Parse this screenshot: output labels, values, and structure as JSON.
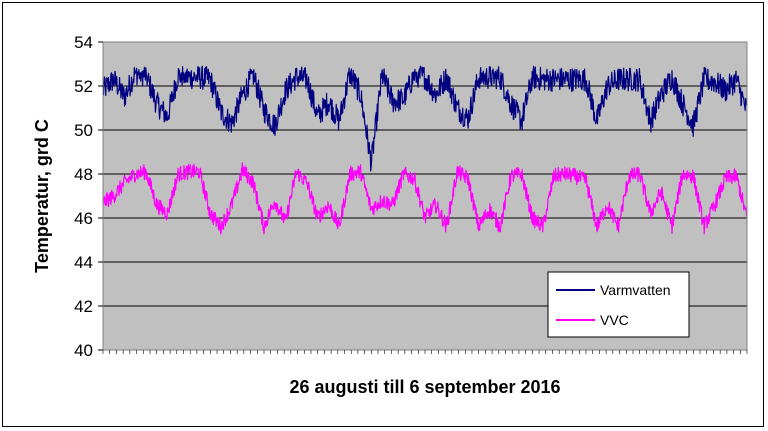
{
  "chart_data": {
    "type": "line",
    "title": "",
    "xlabel": "26 augusti till 6 september 2016",
    "ylabel": "Temperatur, grd C",
    "ylim": [
      40,
      54
    ],
    "yticks": [
      40,
      42,
      44,
      46,
      48,
      50,
      52,
      54
    ],
    "xlim": [
      0,
      12
    ],
    "x_unit": "days since 26 augusti 2016",
    "grid": "horizontal",
    "plot_background": "#c0c0c0",
    "legend_position": "bottom-right",
    "series": [
      {
        "name": "Varmvatten",
        "color": "#000080",
        "x": [
          0,
          0.2,
          0.4,
          0.6,
          0.8,
          1.0,
          1.2,
          1.4,
          1.6,
          1.8,
          2.0,
          2.2,
          2.4,
          2.6,
          2.8,
          3.0,
          3.2,
          3.4,
          3.6,
          3.8,
          4.0,
          4.2,
          4.4,
          4.6,
          4.8,
          5.0,
          5.2,
          5.4,
          5.6,
          5.8,
          6.0,
          6.2,
          6.4,
          6.6,
          6.8,
          7.0,
          7.2,
          7.4,
          7.6,
          7.8,
          8.0,
          8.2,
          8.4,
          8.6,
          8.8,
          9.0,
          9.2,
          9.4,
          9.6,
          9.8,
          10.0,
          10.2,
          10.4,
          10.6,
          10.8,
          11.0,
          11.2,
          11.4,
          11.6,
          11.8,
          12.0
        ],
        "values": [
          51.8,
          52.3,
          51.5,
          52.6,
          52.5,
          51.2,
          50.6,
          52.5,
          52.4,
          52.4,
          52.3,
          50.8,
          50.3,
          51.6,
          52.5,
          50.9,
          50.2,
          51.8,
          52.4,
          52.3,
          50.6,
          51.3,
          50.4,
          52.6,
          51.6,
          48.5,
          52.5,
          51.3,
          51.4,
          52.5,
          52.4,
          51.6,
          52.4,
          51.0,
          50.5,
          52.4,
          52.4,
          52.4,
          51.2,
          50.4,
          52.4,
          52.3,
          52.3,
          52.3,
          52.3,
          52.3,
          50.4,
          52.0,
          52.3,
          52.3,
          52.3,
          50.4,
          51.6,
          52.4,
          51.2,
          50.2,
          52.3,
          52.2,
          51.8,
          52.3,
          50.8
        ]
      },
      {
        "name": "VVC",
        "color": "#ff00ff",
        "x": [
          0,
          0.2,
          0.4,
          0.6,
          0.8,
          1.0,
          1.2,
          1.4,
          1.6,
          1.8,
          2.0,
          2.2,
          2.4,
          2.6,
          2.8,
          3.0,
          3.2,
          3.4,
          3.6,
          3.8,
          4.0,
          4.2,
          4.4,
          4.6,
          4.8,
          5.0,
          5.2,
          5.4,
          5.6,
          5.8,
          6.0,
          6.2,
          6.4,
          6.6,
          6.8,
          7.0,
          7.2,
          7.4,
          7.6,
          7.8,
          8.0,
          8.2,
          8.4,
          8.6,
          8.8,
          9.0,
          9.2,
          9.4,
          9.6,
          9.8,
          10.0,
          10.2,
          10.4,
          10.6,
          10.8,
          11.0,
          11.2,
          11.4,
          11.6,
          11.8,
          12.0
        ],
        "values": [
          46.7,
          47.0,
          47.6,
          48.0,
          48.1,
          46.6,
          46.2,
          48.0,
          48.1,
          48.1,
          46.2,
          45.6,
          46.6,
          48.2,
          47.6,
          45.6,
          46.8,
          45.8,
          48.1,
          47.6,
          46.0,
          46.6,
          45.6,
          48.0,
          48.1,
          46.4,
          46.8,
          46.6,
          48.0,
          47.8,
          46.0,
          46.6,
          45.6,
          48.1,
          47.8,
          45.6,
          46.4,
          45.6,
          47.9,
          48.0,
          46.0,
          45.6,
          47.9,
          48.0,
          47.9,
          47.7,
          45.6,
          46.6,
          45.6,
          47.9,
          48.0,
          46.2,
          47.2,
          45.6,
          48.0,
          47.9,
          45.6,
          46.6,
          47.8,
          47.9,
          46.0
        ]
      }
    ]
  }
}
